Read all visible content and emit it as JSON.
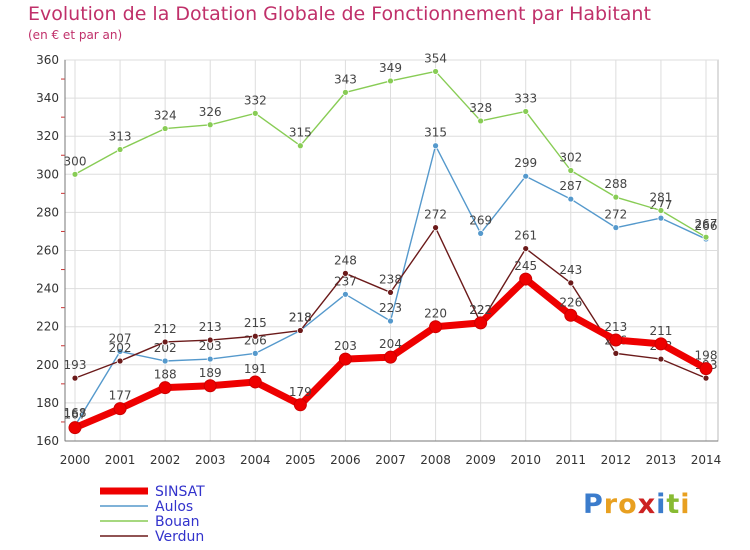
{
  "title": "Evolution de la Dotation Globale de Fonctionnement par Habitant",
  "subtitle": "(en € et par an)",
  "logo": "Proxiti",
  "chart_data": {
    "type": "line",
    "title": "Evolution de la Dotation Globale de Fonctionnement par Habitant",
    "subtitle": "(en € et par an)",
    "x": [
      "2000",
      "2001",
      "2002",
      "2003",
      "2004",
      "2005",
      "2006",
      "2007",
      "2008",
      "2009",
      "2010",
      "2011",
      "2012",
      "2013",
      "2014"
    ],
    "ylim": [
      160,
      360
    ],
    "yticks": [
      160,
      180,
      200,
      220,
      240,
      260,
      280,
      300,
      320,
      340,
      360
    ],
    "grid": true,
    "legend_position": "bottom-left",
    "series": [
      {
        "name": "SINSAT",
        "color": "#ee0000",
        "values": [
          167,
          177,
          188,
          189,
          191,
          179,
          203,
          204,
          220,
          222,
          245,
          226,
          213,
          211,
          198
        ]
      },
      {
        "name": "Aulos",
        "color": "#5599cc",
        "values": [
          168,
          207,
          202,
          203,
          206,
          218,
          237,
          223,
          315,
          269,
          299,
          287,
          272,
          277,
          266
        ]
      },
      {
        "name": "Bouan",
        "color": "#88cc55",
        "values": [
          300,
          313,
          324,
          326,
          332,
          315,
          343,
          349,
          354,
          328,
          333,
          302,
          288,
          281,
          267
        ]
      },
      {
        "name": "Verdun",
        "color": "#6b1a1a",
        "values": [
          193,
          202,
          212,
          213,
          215,
          218,
          248,
          238,
          272,
          222,
          261,
          243,
          206,
          203,
          193
        ]
      }
    ]
  }
}
